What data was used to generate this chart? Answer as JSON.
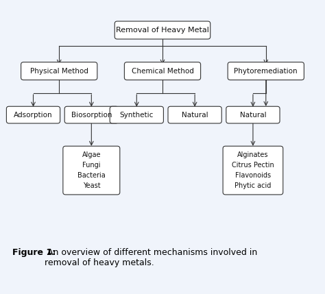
{
  "title": "Removal of Heavy Metal",
  "level1": [
    "Physical Method",
    "Chemical Method",
    "Phytoremediation"
  ],
  "level2_physical": [
    "Adsorption",
    "Biosorption"
  ],
  "level2_chemical": [
    "Synthetic",
    "Natural"
  ],
  "level3_biosorption": [
    "Algae",
    "Fungi",
    "Bacteria",
    "Yeast"
  ],
  "level3_natural": [
    "Alginates",
    "Citrus Pectin",
    "Flavonoids",
    "Phytic acid"
  ],
  "caption_bold": "Figure 1:",
  "caption_normal": " An overview of different mechanisms involved in\nremoval of heavy metals.",
  "bg_color": "#f0f4fb",
  "box_color": "white",
  "border_color": "#333333",
  "text_color": "#111111",
  "line_color": "#333333",
  "font_size_title": 8,
  "font_size_nodes": 7.5,
  "font_size_leaves": 7,
  "font_size_caption": 9
}
